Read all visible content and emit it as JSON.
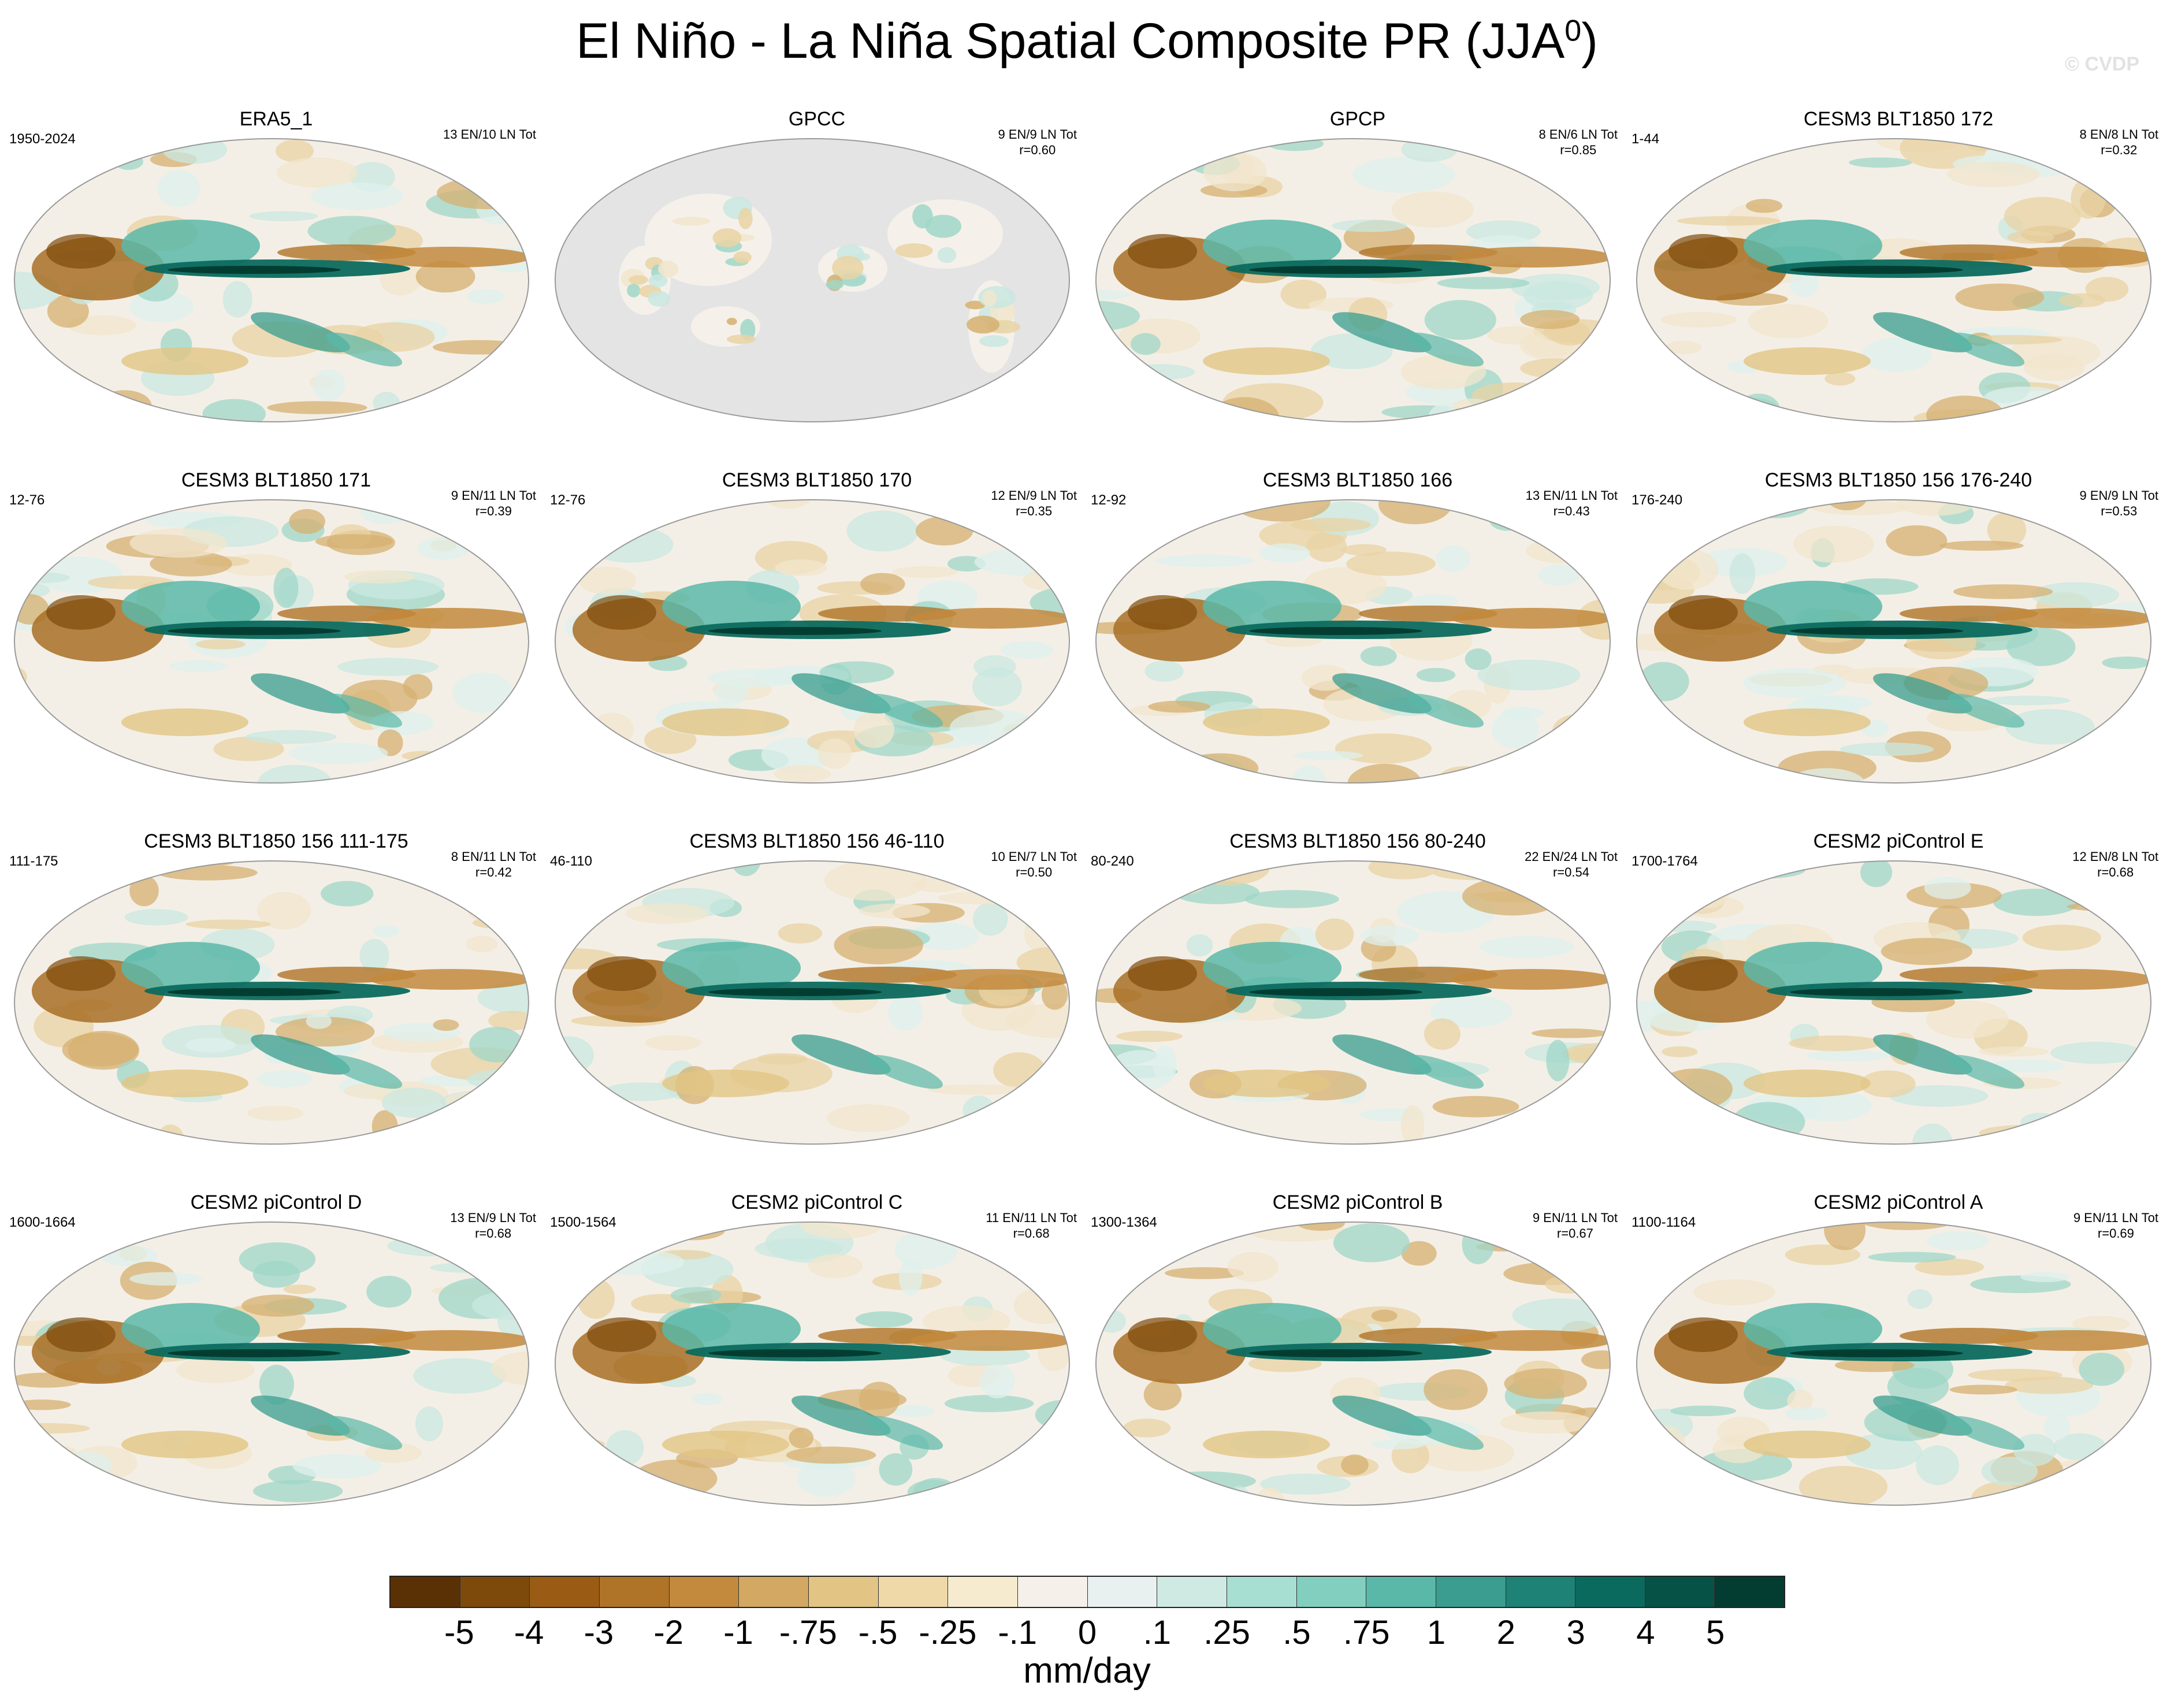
{
  "figure": {
    "title": "El Niño - La Niña Spatial Composite PR (JJA",
    "title_sup": "0",
    "title_close": ")",
    "credit": "© CVDP"
  },
  "panels": [
    {
      "title": "ERA5_1",
      "period": "1950-2024",
      "stats": "13 EN/10 LN Tot",
      "r": "",
      "coverage": "global"
    },
    {
      "title": "GPCC",
      "period": "",
      "stats": "9 EN/9 LN Tot",
      "r": "r=0.60",
      "coverage": "land"
    },
    {
      "title": "GPCP",
      "period": "",
      "stats": "8 EN/6 LN Tot",
      "r": "r=0.85",
      "coverage": "global"
    },
    {
      "title": "CESM3 BLT1850 172",
      "period": "1-44",
      "stats": "8 EN/8 LN Tot",
      "r": "r=0.32",
      "coverage": "global"
    },
    {
      "title": "CESM3 BLT1850 171",
      "period": "12-76",
      "stats": "9 EN/11 LN Tot",
      "r": "r=0.39",
      "coverage": "global"
    },
    {
      "title": "CESM3 BLT1850 170",
      "period": "12-76",
      "stats": "12 EN/9 LN Tot",
      "r": "r=0.35",
      "coverage": "global"
    },
    {
      "title": "CESM3 BLT1850 166",
      "period": "12-92",
      "stats": "13 EN/11 LN Tot",
      "r": "r=0.43",
      "coverage": "global"
    },
    {
      "title": "CESM3 BLT1850 156 176-240",
      "period": "176-240",
      "stats": "9 EN/9 LN Tot",
      "r": "r=0.53",
      "coverage": "global"
    },
    {
      "title": "CESM3 BLT1850 156 111-175",
      "period": "111-175",
      "stats": "8 EN/11 LN Tot",
      "r": "r=0.42",
      "coverage": "global"
    },
    {
      "title": "CESM3 BLT1850 156 46-110",
      "period": "46-110",
      "stats": "10 EN/7 LN Tot",
      "r": "r=0.50",
      "coverage": "global"
    },
    {
      "title": "CESM3 BLT1850 156 80-240",
      "period": "80-240",
      "stats": "22 EN/24 LN Tot",
      "r": "r=0.54",
      "coverage": "global"
    },
    {
      "title": "CESM2 piControl E",
      "period": "1700-1764",
      "stats": "12 EN/8 LN Tot",
      "r": "r=0.68",
      "coverage": "global"
    },
    {
      "title": "CESM2 piControl D",
      "period": "1600-1664",
      "stats": "13 EN/9 LN Tot",
      "r": "r=0.68",
      "coverage": "global"
    },
    {
      "title": "CESM2 piControl C",
      "period": "1500-1564",
      "stats": "11 EN/11 LN Tot",
      "r": "r=0.68",
      "coverage": "global"
    },
    {
      "title": "CESM2 piControl B",
      "period": "1300-1364",
      "stats": "9 EN/11 LN Tot",
      "r": "r=0.67",
      "coverage": "global"
    },
    {
      "title": "CESM2 piControl A",
      "period": "1100-1164",
      "stats": "9 EN/11 LN Tot",
      "r": "r=0.69",
      "coverage": "global"
    }
  ],
  "colorbar": {
    "units": "mm/day",
    "colors": [
      "#5a3005",
      "#7d4a0c",
      "#9a5c14",
      "#b07428",
      "#c38a3d",
      "#d2a862",
      "#e2c584",
      "#efd9a9",
      "#f6ebcf",
      "#f5f1ea",
      "#e8f1ef",
      "#cfeae3",
      "#a8dfd3",
      "#82cfbf",
      "#5ab8a8",
      "#3a9d8f",
      "#1e8276",
      "#0b6a5e",
      "#065246",
      "#033d31"
    ],
    "tick_labels": [
      "-5",
      "-4",
      "-3",
      "-2",
      "-1",
      "-.75",
      "-.5",
      "-.25",
      "-.1",
      "0",
      ".1",
      ".25",
      ".5",
      ".75",
      "1",
      "2",
      "3",
      "4",
      "5"
    ]
  }
}
